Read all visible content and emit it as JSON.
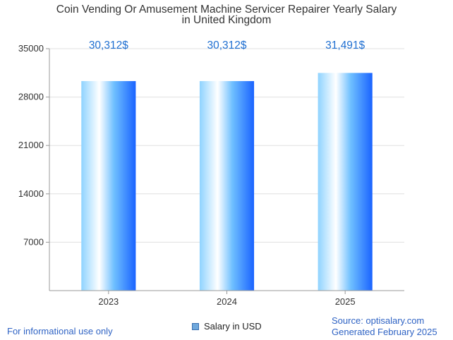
{
  "chart_data": {
    "type": "bar",
    "title": [
      "Coin Vending Or Amusement Machine Servicer Repairer Yearly Salary",
      "in United Kingdom"
    ],
    "categories": [
      "2023",
      "2024",
      "2025"
    ],
    "series": [
      {
        "name": "Salary in USD",
        "values": [
          30312,
          30312,
          31491
        ],
        "labels": [
          "30,312$",
          "30,312$",
          "31,491$"
        ]
      }
    ],
    "ylim": [
      0,
      35000
    ],
    "yticks": [
      7000,
      14000,
      21000,
      28000,
      35000
    ],
    "grid": true,
    "legend": "bottom-center",
    "colors": {
      "bar_light": "#ffffff",
      "bar_mid": "#8fd3ff",
      "bar_dark": "#1a63ff",
      "value_label": "#1f6fd1",
      "grid": "#e0e0e0",
      "axis": "#999999",
      "footer_text": "#2f63c4",
      "legend_swatch": "#6fa8dc"
    }
  },
  "footer": {
    "left": "For informational use only",
    "source": "Source: optisalary.com",
    "generated": "Generated February 2025"
  }
}
